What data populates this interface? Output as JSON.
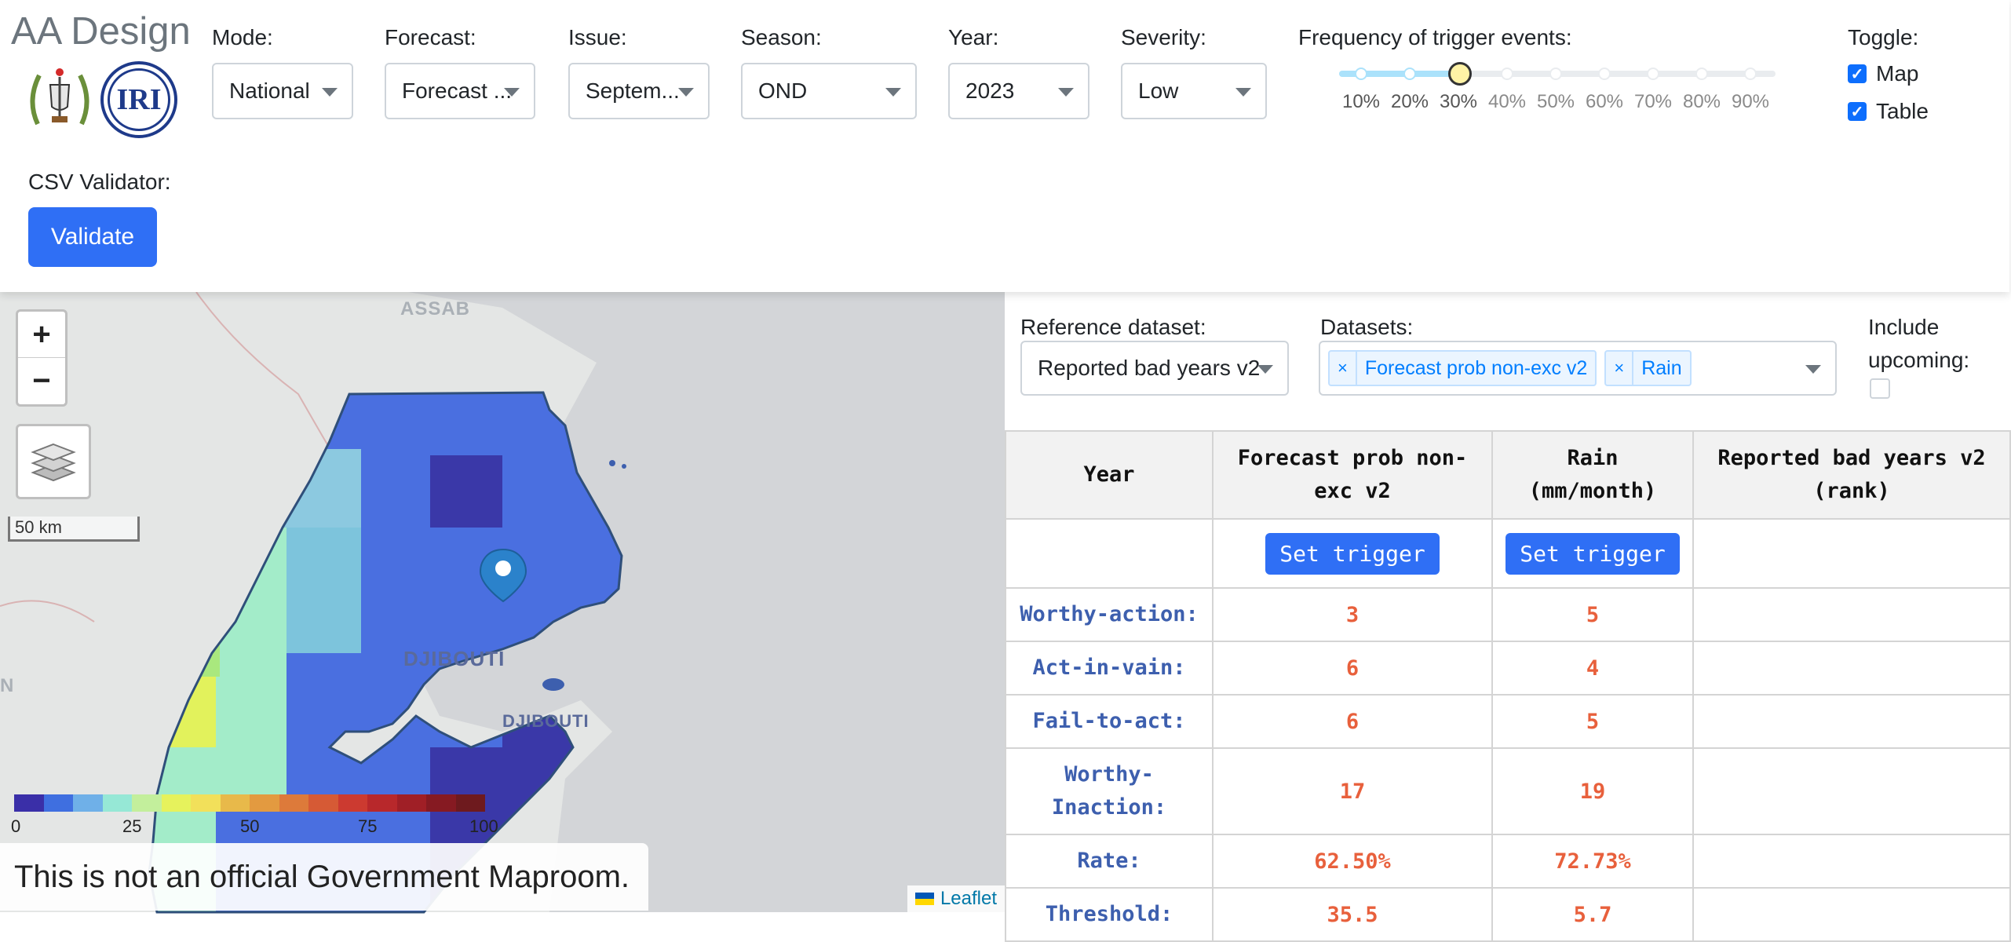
{
  "app": {
    "title": "AA Design",
    "logos": [
      {
        "name": "government-emblem",
        "text": ""
      },
      {
        "name": "iri-logo",
        "text": "IRI"
      }
    ]
  },
  "controls": {
    "mode": {
      "label": "Mode:",
      "value": "National"
    },
    "forecast": {
      "label": "Forecast:",
      "value": "Forecast ..."
    },
    "issue": {
      "label": "Issue:",
      "value": "Septem..."
    },
    "season": {
      "label": "Season:",
      "value": "OND"
    },
    "year": {
      "label": "Year:",
      "value": "2023"
    },
    "severity": {
      "label": "Severity:",
      "value": "Low"
    }
  },
  "frequency": {
    "label": "Frequency of trigger events:",
    "marks": [
      "10%",
      "20%",
      "30%",
      "40%",
      "50%",
      "60%",
      "70%",
      "80%",
      "90%"
    ],
    "selected": "30%"
  },
  "toggle": {
    "label": "Toggle:",
    "items": [
      {
        "label": "Map",
        "checked": true
      },
      {
        "label": "Table",
        "checked": true
      }
    ]
  },
  "csv": {
    "label": "CSV Validator:",
    "button": "Validate"
  },
  "map": {
    "zoom_in": "+",
    "zoom_out": "−",
    "scale": "50 km",
    "labels": {
      "assab": "ASSAB",
      "djibouti_region": "DJIBOUTI",
      "djibouti_city": "DJIBOUTI",
      "edge": "N"
    },
    "colorbar": {
      "ticks": [
        "0",
        "25",
        "50",
        "75",
        "100"
      ],
      "colors": [
        "#3a2fa8",
        "#3f6fe0",
        "#6fb0e8",
        "#96e8d6",
        "#c3ef9c",
        "#e6f25c",
        "#f2e05a",
        "#e8b94a",
        "#e39a40",
        "#dd7a3a",
        "#d65a35",
        "#cc3a30",
        "#b8282b",
        "#a01f26",
        "#861a22",
        "#6e1a1e"
      ]
    },
    "disclaimer": "This is not an official Government Maproom.",
    "attribution": "Leaflet"
  },
  "panel": {
    "reference_label": "Reference dataset:",
    "reference_value": "Reported bad years v2",
    "datasets_label": "Datasets:",
    "datasets": [
      "Forecast prob non-exc v2",
      "Rain"
    ],
    "include_label": [
      "Include",
      "upcoming:"
    ],
    "include_checked": false
  },
  "table": {
    "headers": [
      "Year",
      "Forecast prob non-exc v2",
      "Rain (mm/month)",
      "Reported bad years v2 (rank)"
    ],
    "set_trigger": "Set trigger",
    "rows": [
      {
        "label": "Worthy-action:",
        "forecast": "3",
        "rain": "5",
        "reported": ""
      },
      {
        "label": "Act-in-vain:",
        "forecast": "6",
        "rain": "4",
        "reported": ""
      },
      {
        "label": "Fail-to-act:",
        "forecast": "6",
        "rain": "5",
        "reported": ""
      },
      {
        "label": "Worthy-Inaction:",
        "forecast": "17",
        "rain": "19",
        "reported": ""
      },
      {
        "label": "Rate:",
        "forecast": "62.50%",
        "rain": "72.73%",
        "reported": ""
      },
      {
        "label": "Threshold:",
        "forecast": "35.5",
        "rain": "5.7",
        "reported": ""
      }
    ]
  }
}
